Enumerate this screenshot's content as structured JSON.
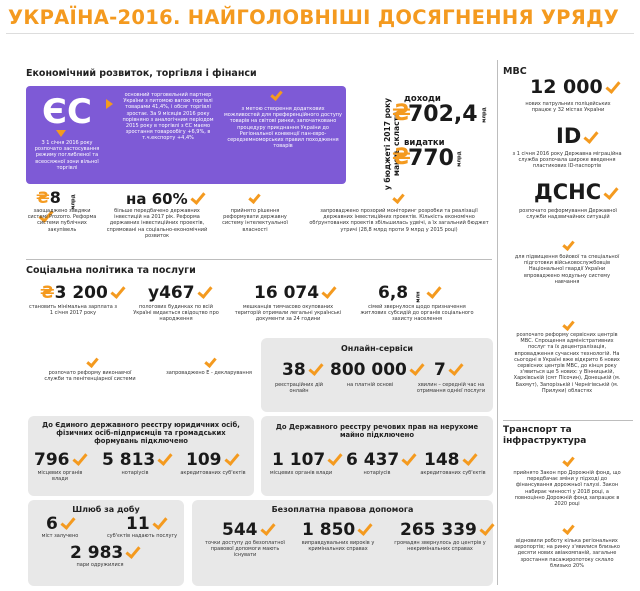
{
  "header": {
    "title": "УКРАЇНА-2016. НАЙГОЛОВНІШІ ДОСЯГНЕННЯ УРЯДУ"
  },
  "econ": {
    "title": "Економічний розвиток, торгівля і фінанси",
    "eu_label": "ЄС",
    "eu_left": "З 1 січня 2016 року розпочато застосування режиму поглибленої та всеосяжної зони вільної торгівлі",
    "eu_mid": "основний торговельний партнер України з питомою вагою торгівлі товарами 41,4%, і обсяг торгівлі зростає. За 9 місяців 2016 року порівняно з аналогічним періодом 2015 року в торгівлі з ЄС маємо зростання товарообігу +6,9%, в т.ч.експорту +4,4%",
    "eu_right": "з метою створення додаткових можливостей для преференційного доступу товарів на світові ринки, започатковано процедуру приєднання України до Регіональної конвенції пан-євро-середземноморських правил походження товарів",
    "budget_side": "у бюджеті 2017 року мають скласти",
    "revenue_label": "доходи",
    "revenue_value": "702,4",
    "revenue_unit": "млрд",
    "expense_label": "видатки",
    "expense_value": "770",
    "expense_unit": "млрд",
    "prozorro_value": "8",
    "prozorro_unit": "млрд",
    "prozorro_text": "заощаджено завдяки системі Prozorro. Реформа системи публічних закупівель",
    "invest_value": "на 60%",
    "invest_text": "більше передбачено державних інвестицій на 2017 рік. Реформа державних інвестиційних проектів, спрямовані на соціально-економічний розвиток",
    "ip_text": "прийнято рішення реформувати державну систему інтелектуальної власності",
    "monitor_text": "запроваджено прозорий моніторинг розробки та реалізації державних інвестиційних проектів. Кількість економічно обґрунтованих проектів збільшилась удвічі, а їх загальний бюджет утричі (28,8 млрд проти 9 млрд у 2015 році)"
  },
  "social": {
    "title": "Соціальна політика та послуги",
    "wage_value": "3 200",
    "wage_text": "становить мінімальна зарплата з 1 січня 2017 року",
    "births_value": "у467",
    "births_text": "пологових будинках по всій Україні видається свідоцтво про народження",
    "docs_value": "16 074",
    "docs_text": "мешканців тимчасово окупованих територій отримали легальні українські документи за 24 години",
    "subsidy_value": "6,8",
    "subsidy_unit": "млн",
    "subsidy_text": "сімей звернулося щодо призначення житлових субсидій до органів соціального захисту населення",
    "probation_text": "розпочато реформу виконавчої служби та пенітенціарної системи",
    "edecl_text": "запроваджено Е - декларування"
  },
  "online": {
    "title": "Онлайн-сервіси",
    "s1_value": "38",
    "s1_text": "реєстраційних дій онлайн",
    "s2_value": "800 000",
    "s2_text": "на платній основі",
    "s3_value": "7",
    "s3_text": "хвилин – середній час на отримання однієї послуги"
  },
  "edr": {
    "title": "До Єдиного державного реєстру юридичних осіб, фізичних осіб-підприємців та громадських формувань підключено",
    "v1": "796",
    "t1": "місцевих органів влади",
    "v2": "5 813",
    "t2": "нотаріусів",
    "v3": "109",
    "t3": "акредитованих суб'єктів"
  },
  "property": {
    "title": "До Державного реєстру речових прав на нерухоме майно підключено",
    "v1": "1 107",
    "t1": "місцевих органів влади",
    "v2": "6 437",
    "t2": "нотаріусів",
    "v3": "148",
    "t3": "акредитованих суб'єктів"
  },
  "oneday": {
    "title": "Шлюб за добу",
    "v1": "6",
    "t1": "міст залучено",
    "v2": "11",
    "t2": "суб'єктів надають послугу",
    "v3": "2 983",
    "t3": "пари одружилися"
  },
  "legal": {
    "title": "Безоплатна правова допомога",
    "v1": "544",
    "t1": "точки доступу до безоплатної правової допомоги мають існувати",
    "v2": "1 850",
    "t2": "виправдувальних вироків у кримінальних справах",
    "v3": "265 339",
    "t3": "громадян звернулось до центрів у некримінальних справах"
  },
  "mvs": {
    "title": "МВС",
    "police_value": "12 000",
    "police_text": "нових патрульних поліцейських працює у 32 містах України",
    "id_value": "ID",
    "id_text": "з 1 січня 2016 року Державна міграційна служба розпочала широке введення пластикових ID-паспортів",
    "dsns_value": "ДСНС",
    "dsns_text": "розпочато реформування Державної служби надзвичайних ситуацій",
    "guard_text": "для підвищення бойової та спеціальної підготовки військовослужбовців Національної гвардії України впроваджено модульну систему навчання",
    "service_text": "розпочато реформу сервісних центрів МВС. Спрощення адміністративних послуг та їх децентралізація, впровадження сучасних технологій. На сьогодні в Україні вже відкрито 6 нових сервісних центрів МВС, до кінця року з'явиться ще 5 нових: у Вінницькій, Харківській (смт Пісочин), Донецькій (м. Бахмут), Запорізькій і Чернігівській (м. Прилуки) областях"
  },
  "transport": {
    "title": "Транспорт та інфраструктура",
    "road_text": "прийнято Закон про Дорожній фонд, що передбачає зміни у підході до фінансування дорожньої галузі. Закон набирає чинності у 2018 році, а повноцінно Дорожній фонд запрацює в 2020 році",
    "airport_text": "відновили роботу кілька регіональних аеропортів; на ринку з'явилися близько десяти нових авіакомпаній, загальне зростання пасажиропотоку склало близько 20%"
  },
  "colors": {
    "accent": "#f49a1f",
    "purple": "#7e5ad6",
    "panel": "#e8e8e8"
  }
}
